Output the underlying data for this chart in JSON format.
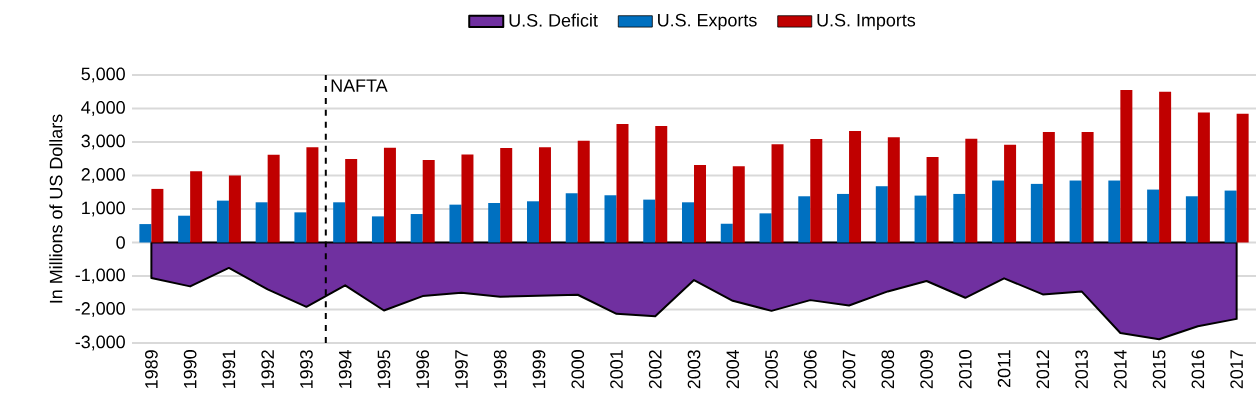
{
  "chart_data": {
    "type": "bar",
    "ylabel": "In Millions of US Dollars",
    "x": [
      1989,
      1990,
      1991,
      1992,
      1993,
      1994,
      1995,
      1996,
      1997,
      1998,
      1999,
      2000,
      2001,
      2002,
      2003,
      2004,
      2005,
      2006,
      2007,
      2008,
      2009,
      2010,
      2011,
      2012,
      2013,
      2014,
      2015,
      2016,
      2017
    ],
    "series": [
      {
        "name": "U.S. Deficit",
        "type": "area",
        "color": "#7030a0",
        "values": [
          -1060,
          -1310,
          -760,
          -1400,
          -1920,
          -1280,
          -2030,
          -1600,
          -1500,
          -1620,
          -1590,
          -1560,
          -2130,
          -2200,
          -1120,
          -1740,
          -2040,
          -1720,
          -1880,
          -1460,
          -1150,
          -1650,
          -1070,
          -1550,
          -1460,
          -2700,
          -2890,
          -2500,
          -2280
        ]
      },
      {
        "name": "U.S. Exports",
        "color": "#0070c0",
        "values": [
          550,
          800,
          1250,
          1200,
          900,
          1200,
          780,
          850,
          1130,
          1180,
          1230,
          1470,
          1410,
          1280,
          1200,
          560,
          870,
          1380,
          1450,
          1680,
          1400,
          1450,
          1850,
          1750,
          1850,
          1850,
          1580,
          1380,
          1550
        ]
      },
      {
        "name": "U.S. Imports",
        "color": "#c00000",
        "values": [
          1600,
          2130,
          2000,
          2620,
          2840,
          2490,
          2830,
          2460,
          2630,
          2820,
          2840,
          3040,
          3540,
          3480,
          2310,
          2280,
          2930,
          3090,
          3330,
          3140,
          2550,
          3100,
          2920,
          3300,
          3300,
          4550,
          4500,
          3880,
          3840
        ]
      }
    ],
    "xlim": [
      1988.5,
      2017.5
    ],
    "xticks": [
      1989,
      1990,
      1991,
      1992,
      1993,
      1994,
      1995,
      1996,
      1997,
      1998,
      1999,
      2000,
      2001,
      2002,
      2003,
      2004,
      2005,
      2006,
      2007,
      2008,
      2009,
      2010,
      2011,
      2012,
      2013,
      2014,
      2015,
      2016,
      2017
    ],
    "ylim": [
      -3000,
      5000
    ],
    "yticks": [
      {
        "value": 5000,
        "label": "5,000"
      },
      {
        "value": 4000,
        "label": "4,000"
      },
      {
        "value": 3000,
        "label": "3,000"
      },
      {
        "value": 2000,
        "label": "2,000"
      },
      {
        "value": 1000,
        "label": "1,000"
      },
      {
        "value": 0,
        "label": "0"
      },
      {
        "value": -1000,
        "label": "-1,000"
      },
      {
        "value": -2000,
        "label": "-2,000"
      },
      {
        "value": -3000,
        "label": "-3,000"
      }
    ],
    "ref_lines": [
      {
        "axis": "x",
        "value": 1993.5,
        "label": "NAFTA",
        "color": "#000000",
        "line_style": "dashed"
      }
    ],
    "grid": "y",
    "legend": "top"
  }
}
